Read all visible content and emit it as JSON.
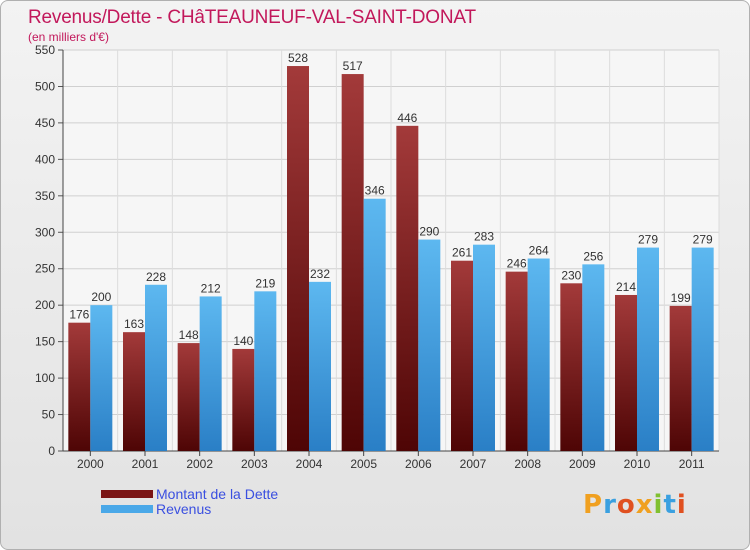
{
  "title": "Revenus/Dette - CHâTEAUNEUF-VAL-SAINT-DONAT",
  "subtitle": "(en milliers d'€)",
  "colors": {
    "title": "#c2185b",
    "debt": "#7a1515",
    "revenue": "#4aa8e8",
    "legend_text": "#3a4fe0"
  },
  "legend": [
    {
      "label": "Montant de la Dette"
    },
    {
      "label": "Revenus"
    }
  ],
  "logo": {
    "text": "Proxiti"
  },
  "chart_data": {
    "type": "bar",
    "categories": [
      "2000",
      "2001",
      "2002",
      "2003",
      "2004",
      "2005",
      "2006",
      "2007",
      "2008",
      "2009",
      "2010",
      "2011"
    ],
    "series": [
      {
        "name": "Montant de la Dette",
        "values": [
          176,
          163,
          148,
          140,
          528,
          517,
          446,
          261,
          246,
          230,
          214,
          199
        ]
      },
      {
        "name": "Revenus",
        "values": [
          200,
          228,
          212,
          219,
          232,
          346,
          290,
          283,
          264,
          256,
          279,
          279
        ]
      }
    ],
    "ylim": [
      0,
      550
    ],
    "yticks": [
      0,
      50,
      100,
      150,
      200,
      250,
      300,
      350,
      400,
      450,
      500,
      550
    ],
    "grid": true,
    "legend_position": "bottom-left"
  }
}
